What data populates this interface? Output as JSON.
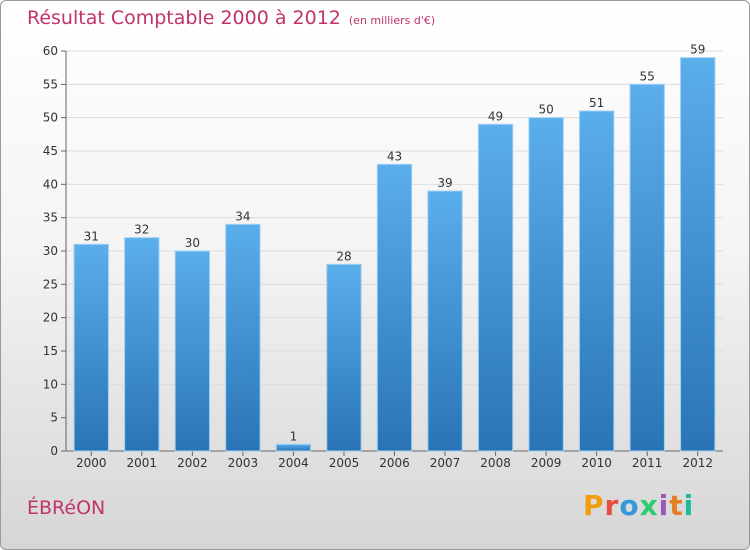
{
  "header": {
    "title": "Résultat Comptable 2000 à 2012",
    "subtitle": "(en milliers d'€)"
  },
  "place": "ÉBRéON",
  "logo": {
    "letters": [
      "P",
      "r",
      "o",
      "x",
      "i",
      "t",
      "i"
    ],
    "colors": [
      "#f39c12",
      "#e74c3c",
      "#3498db",
      "#2ecc71",
      "#9b59b6",
      "#e67e22",
      "#1abc9c"
    ]
  },
  "chart_data": {
    "type": "bar",
    "title": "Résultat Comptable 2000 à 2012",
    "subtitle": "(en milliers d'€)",
    "categories": [
      "2000",
      "2001",
      "2002",
      "2003",
      "2004",
      "2005",
      "2006",
      "2007",
      "2008",
      "2009",
      "2010",
      "2011",
      "2012"
    ],
    "values": [
      31,
      32,
      30,
      34,
      1,
      28,
      43,
      39,
      49,
      50,
      51,
      55,
      59
    ],
    "data_labels": [
      "31",
      "32",
      "30",
      "34",
      "1",
      "28",
      "43",
      "39",
      "49",
      "50",
      "51",
      "55",
      "59"
    ],
    "y_ticks": [
      "0",
      "5",
      "10",
      "15",
      "20",
      "25",
      "30",
      "35",
      "40",
      "45",
      "50",
      "55",
      "60"
    ],
    "ylim": [
      0,
      60
    ],
    "xlabel": "",
    "ylabel": "",
    "grid": true,
    "bar_color": "#4a9fe0"
  }
}
